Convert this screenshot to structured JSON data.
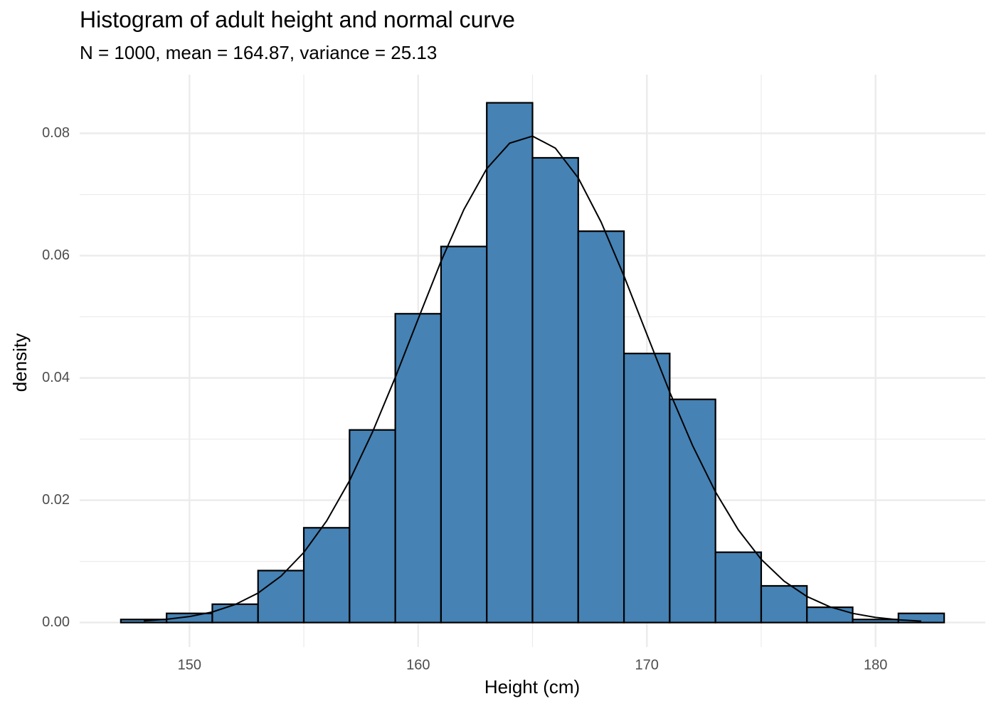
{
  "chart_data": {
    "type": "histogram",
    "title": "Histogram of adult height and normal curve",
    "subtitle": "N = 1000, mean = 164.87, variance = 25.13",
    "x_label": "Height (cm)",
    "y_label": "density",
    "bins": [
      147,
      149,
      151,
      153,
      155,
      157,
      159,
      161,
      163,
      165,
      167,
      169,
      171,
      173,
      175,
      177,
      179,
      181,
      183
    ],
    "values": [
      0.0005,
      0.0015,
      0.003,
      0.0085,
      0.0155,
      0.0315,
      0.0505,
      0.0615,
      0.085,
      0.076,
      0.064,
      0.044,
      0.0365,
      0.0115,
      0.006,
      0.0025,
      0.0005,
      0.0015
    ],
    "color": "#4682b4",
    "edge_color": "#000000",
    "curve": {
      "color": "#000000",
      "x": [
        148,
        149,
        150,
        151,
        152,
        153,
        154,
        155,
        156,
        157,
        158,
        159,
        160,
        161,
        162,
        163,
        164,
        165,
        166,
        167,
        168,
        169,
        170,
        171,
        172,
        173,
        174,
        175,
        176,
        177,
        178,
        179,
        180,
        181,
        182
      ],
      "values": [
        0.00028,
        0.00053,
        0.00098,
        0.00173,
        0.00295,
        0.00482,
        0.00758,
        0.01146,
        0.01663,
        0.02321,
        0.03112,
        0.04009,
        0.04964,
        0.05907,
        0.06755,
        0.07423,
        0.07839,
        0.07955,
        0.07758,
        0.07271,
        0.06549,
        0.05668,
        0.04714,
        0.03768,
        0.02894,
        0.02137,
        0.01515,
        0.01033,
        0.00677,
        0.00426,
        0.00258,
        0.0015,
        0.00084,
        0.00045,
        0.00023
      ]
    },
    "xlim": [
      145.2,
      184.8
    ],
    "ylim": [
      -0.004,
      0.0896
    ],
    "xticks": [
      150,
      160,
      170,
      180
    ],
    "yticks": [
      {
        "value": 0,
        "label": "0.00"
      },
      0.02,
      0.04,
      0.06,
      0.08
    ],
    "x_minor_ticks": [
      155,
      165,
      175
    ],
    "y_minor_ticks": [
      0.01,
      0.03,
      0.05,
      0.07
    ],
    "grid": true
  }
}
